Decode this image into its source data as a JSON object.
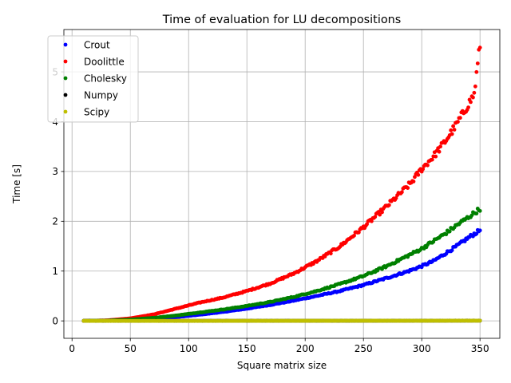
{
  "chart_data": {
    "type": "scatter",
    "title": "Time of evaluation for LU decompositions",
    "xlabel": "Square matrix size",
    "ylabel": "Time [s]",
    "xlim": [
      -7,
      367
    ],
    "ylim": [
      -0.35,
      5.85
    ],
    "xticks": [
      0,
      50,
      100,
      150,
      200,
      250,
      300,
      350
    ],
    "yticks": [
      0,
      1,
      2,
      3,
      4,
      5
    ],
    "grid": true,
    "legend_position": "top-left",
    "x_range": [
      10,
      350
    ],
    "series": [
      {
        "name": "Crout",
        "color": "#0000ff",
        "x": [
          10,
          30,
          50,
          70,
          90,
          110,
          130,
          150,
          170,
          190,
          210,
          230,
          250,
          270,
          290,
          300,
          310,
          320,
          330,
          340,
          350
        ],
        "y": [
          0.0,
          0.004,
          0.015,
          0.04,
          0.077,
          0.125,
          0.18,
          0.245,
          0.32,
          0.405,
          0.5,
          0.6,
          0.72,
          0.86,
          1.01,
          1.1,
          1.2,
          1.35,
          1.5,
          1.67,
          1.82
        ]
      },
      {
        "name": "Doolittle",
        "color": "#ff0000",
        "x": [
          10,
          30,
          50,
          70,
          90,
          110,
          130,
          150,
          170,
          190,
          210,
          230,
          250,
          270,
          290,
          300,
          310,
          320,
          330,
          340,
          345,
          350
        ],
        "y": [
          0.0,
          0.01,
          0.05,
          0.13,
          0.25,
          0.37,
          0.47,
          0.6,
          0.75,
          0.95,
          1.2,
          1.5,
          1.88,
          2.3,
          2.75,
          3.05,
          3.3,
          3.6,
          3.95,
          4.35,
          4.55,
          5.55
        ]
      },
      {
        "name": "Cholesky",
        "color": "#008000",
        "x": [
          10,
          30,
          50,
          70,
          90,
          110,
          130,
          150,
          170,
          190,
          210,
          230,
          250,
          270,
          290,
          300,
          310,
          320,
          330,
          340,
          350
        ],
        "y": [
          0.0,
          0.006,
          0.025,
          0.06,
          0.11,
          0.17,
          0.23,
          0.3,
          0.38,
          0.48,
          0.6,
          0.74,
          0.9,
          1.1,
          1.33,
          1.45,
          1.6,
          1.75,
          1.92,
          2.08,
          2.25
        ]
      },
      {
        "name": "Numpy",
        "color": "#000000",
        "x": [
          10,
          100,
          200,
          300,
          350
        ],
        "y": [
          0.0,
          0.0,
          0.002,
          0.004,
          0.005
        ]
      },
      {
        "name": "Scipy",
        "color": "#bfbf00",
        "x": [
          10,
          100,
          200,
          300,
          350
        ],
        "y": [
          0.0,
          0.0,
          0.002,
          0.003,
          0.004
        ]
      }
    ]
  }
}
